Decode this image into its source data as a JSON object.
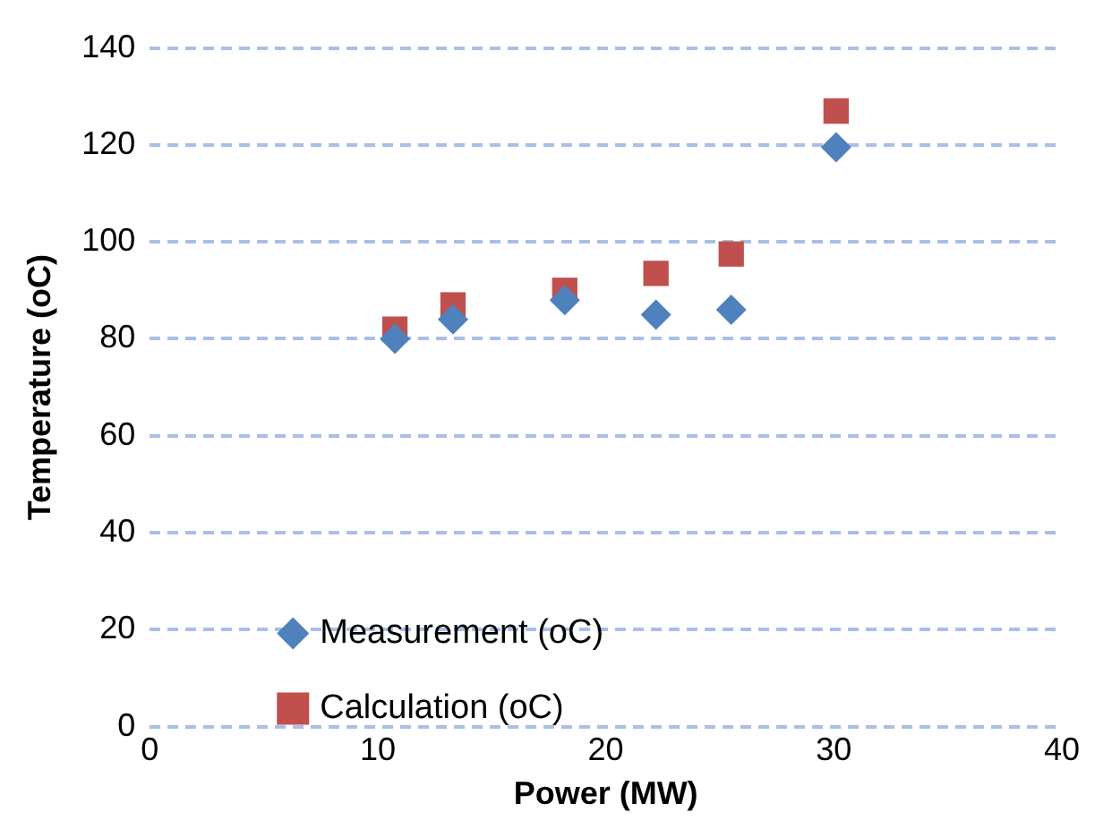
{
  "chart_data": {
    "type": "scatter",
    "xlabel": "Power (MW)",
    "ylabel": "Temperature (oC)",
    "x": [
      10.75,
      13.3,
      18.2,
      22.2,
      25.5,
      30.1
    ],
    "xlim": [
      0,
      40
    ],
    "xticks": [
      0,
      10,
      20,
      30,
      40
    ],
    "ylim": [
      0,
      140
    ],
    "yticks": [
      0,
      20,
      40,
      60,
      80,
      100,
      120,
      140
    ],
    "grid": "y",
    "legend": "bottom",
    "series": [
      {
        "name": "Measurement (oC)",
        "color": "#4f81bd",
        "marker": "diamond",
        "values": [
          80,
          84,
          88,
          85,
          86,
          119.5
        ]
      },
      {
        "name": "Calculation (oC)",
        "color": "#c0504d",
        "marker": "square",
        "values": [
          82,
          87,
          90,
          93.5,
          97.5,
          127
        ]
      }
    ]
  }
}
